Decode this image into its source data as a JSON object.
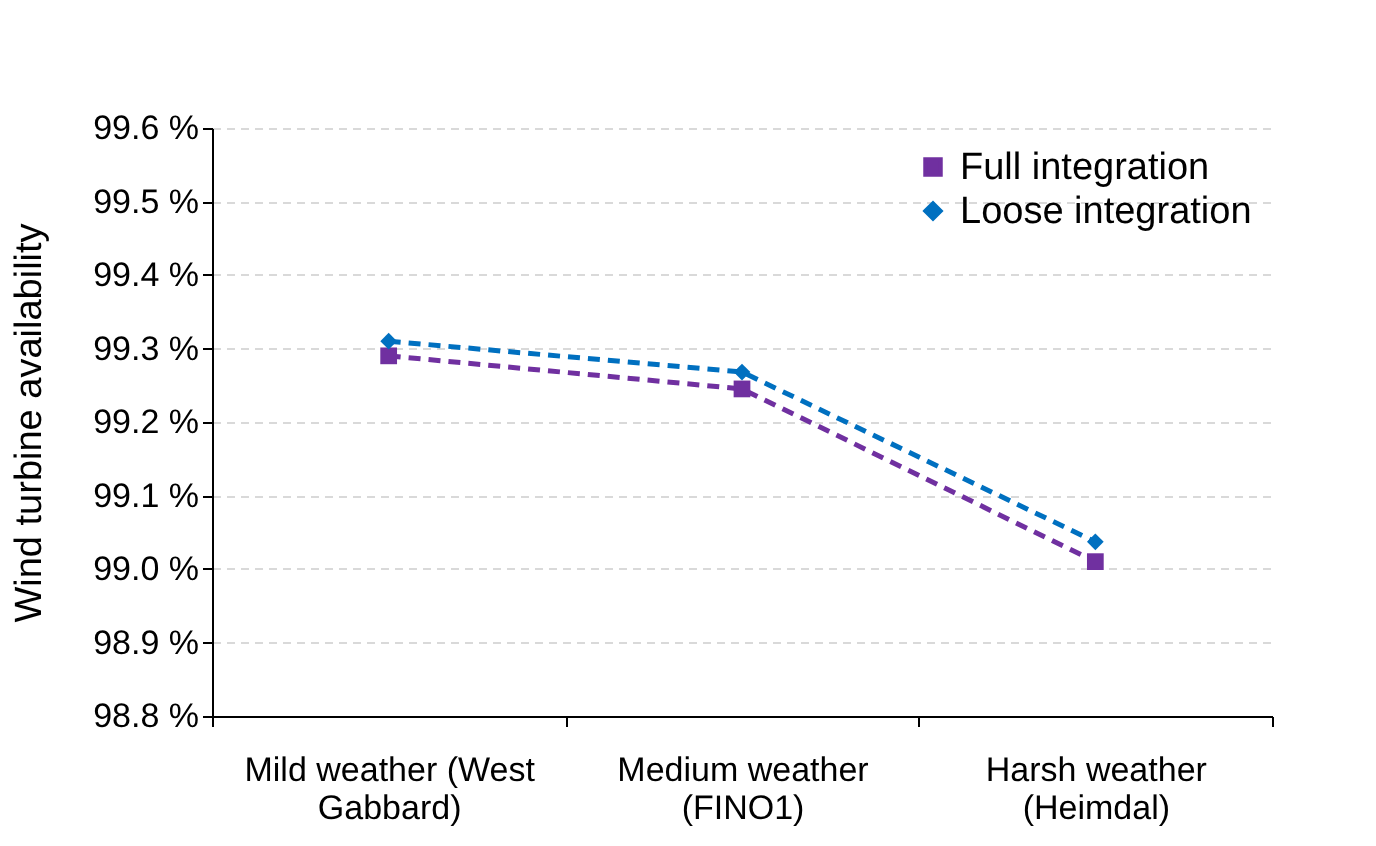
{
  "chart_data": {
    "type": "line",
    "ylabel": "Wind turbine availability",
    "categories": [
      "Mild weather (West Gabbard)",
      "Medium weather (FINO1)",
      "Harsh weather (Heimdal)"
    ],
    "series": [
      {
        "name": "Full integration",
        "color": "#7030a0",
        "marker": "square",
        "values": [
          99.29,
          99.245,
          99.01
        ]
      },
      {
        "name": "Loose integration",
        "color": "#0070c0",
        "marker": "diamond",
        "values": [
          99.31,
          99.268,
          99.037
        ]
      }
    ],
    "ylim": [
      98.8,
      99.6
    ],
    "yticks": [
      {
        "value": 98.8,
        "label": "98.8 %"
      },
      {
        "value": 98.9,
        "label": "98.9 %"
      },
      {
        "value": 99.0,
        "label": "99.0 %"
      },
      {
        "value": 99.1,
        "label": "99.1 %"
      },
      {
        "value": 99.2,
        "label": "99.2 %"
      },
      {
        "value": 99.3,
        "label": "99.3 %"
      },
      {
        "value": 99.4,
        "label": "99.4 %"
      },
      {
        "value": 99.5,
        "label": "99.5 %"
      },
      {
        "value": 99.6,
        "label": "99.6 %"
      }
    ],
    "grid": "y",
    "legend": "top right",
    "line_style": "dashed"
  }
}
